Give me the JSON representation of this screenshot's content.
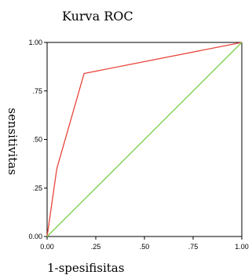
{
  "chart_data": {
    "type": "line",
    "title": "Kurva ROC",
    "xlabel": "1-spesifisitas",
    "ylabel": "sensitivitas",
    "xlim": [
      0,
      1
    ],
    "ylim": [
      0,
      1
    ],
    "x_ticks": [
      0,
      0.25,
      0.5,
      0.75,
      1
    ],
    "y_ticks": [
      0,
      0.25,
      0.5,
      0.75,
      1
    ],
    "x_tick_labels": [
      "0.00",
      ".25",
      ".50",
      ".75",
      "1.00"
    ],
    "y_tick_labels": [
      "0.00",
      ".25",
      ".50",
      ".75",
      "1.00"
    ],
    "grid": false,
    "series": [
      {
        "color": "#e8453c",
        "x": [
          0,
          0.05,
          0.19,
          1
        ],
        "y": [
          0,
          0.35,
          0.84,
          1
        ]
      },
      {
        "color": "#7ccf4a",
        "x": [
          0,
          1
        ],
        "y": [
          0,
          1
        ]
      }
    ]
  }
}
